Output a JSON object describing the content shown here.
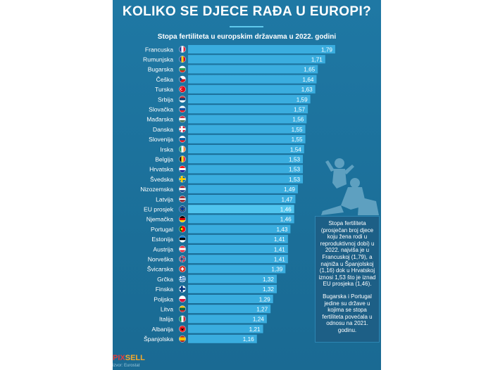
{
  "title": "KOLIKO SE DJECE RAĐA U EUROPI?",
  "chart_data": {
    "type": "bar",
    "orientation": "horizontal",
    "title": "Stopa fertiliteta u europskim državama u 2022. godini",
    "categories": [
      "Francuska",
      "Rumunjska",
      "Bugarska",
      "Češka",
      "Turska",
      "Srbija",
      "Slovačka",
      "Mađarska",
      "Danska",
      "Slovenija",
      "Irska",
      "Belgija",
      "Hrvatska",
      "Švedska",
      "Nizozemska",
      "Latvija",
      "EU prosjek",
      "Njemačka",
      "Portugal",
      "Estonija",
      "Austrija",
      "Norveška",
      "Švicarska",
      "Grčka",
      "Finska",
      "Poljska",
      "Litva",
      "Italija",
      "Albanija",
      "Španjolska"
    ],
    "values": [
      1.79,
      1.71,
      1.65,
      1.64,
      1.63,
      1.59,
      1.57,
      1.56,
      1.55,
      1.55,
      1.54,
      1.53,
      1.53,
      1.53,
      1.49,
      1.47,
      1.46,
      1.46,
      1.43,
      1.41,
      1.41,
      1.41,
      1.39,
      1.32,
      1.32,
      1.29,
      1.27,
      1.24,
      1.21,
      1.16
    ],
    "value_labels": [
      "1,79",
      "1,71",
      "1,65",
      "1,64",
      "1,63",
      "1,59",
      "1,57",
      "1,56",
      "1,55",
      "1,55",
      "1,54",
      "1,53",
      "1,53",
      "1,53",
      "1,49",
      "1,47",
      "1,46",
      "1,46",
      "1,43",
      "1,41",
      "1,41",
      "1,41",
      "1,39",
      "1,32",
      "1,32",
      "1,29",
      "1,27",
      "1,24",
      "1,21",
      "1,16"
    ],
    "flags": [
      "fr",
      "ro",
      "bg",
      "cz",
      "tr",
      "rs",
      "sk",
      "hu",
      "dk",
      "si",
      "ie",
      "be",
      "hr",
      "se",
      "nl",
      "lv",
      "eu",
      "de",
      "pt",
      "ee",
      "at",
      "no",
      "ch",
      "gr",
      "fi",
      "pl",
      "lt",
      "it",
      "al",
      "es"
    ],
    "colors": {
      "bar": "#3aaddf",
      "bar_highlight": "#4fc4ee",
      "label": "#ffffff"
    }
  },
  "note": {
    "paragraph1": "Stopa fertiliteta (prosječan broj djece koju žena rodi u reproduktivnoj dobi) u 2022. najviša je u Francuskoj (1,79), a najniža u Španjolskoj (1,16) dok u Hrvatskoj iznosi 1,53 što je iznad EU prosjeka (1,46).",
    "paragraph2": "Bugarska i Portugal jedine su države u kojima se stopa fertiliteta povećala u odnosu na 2021. godinu."
  },
  "logo": {
    "part1": "PIX",
    "part2": "SELL",
    "sub": "izvor: Eurostat"
  }
}
